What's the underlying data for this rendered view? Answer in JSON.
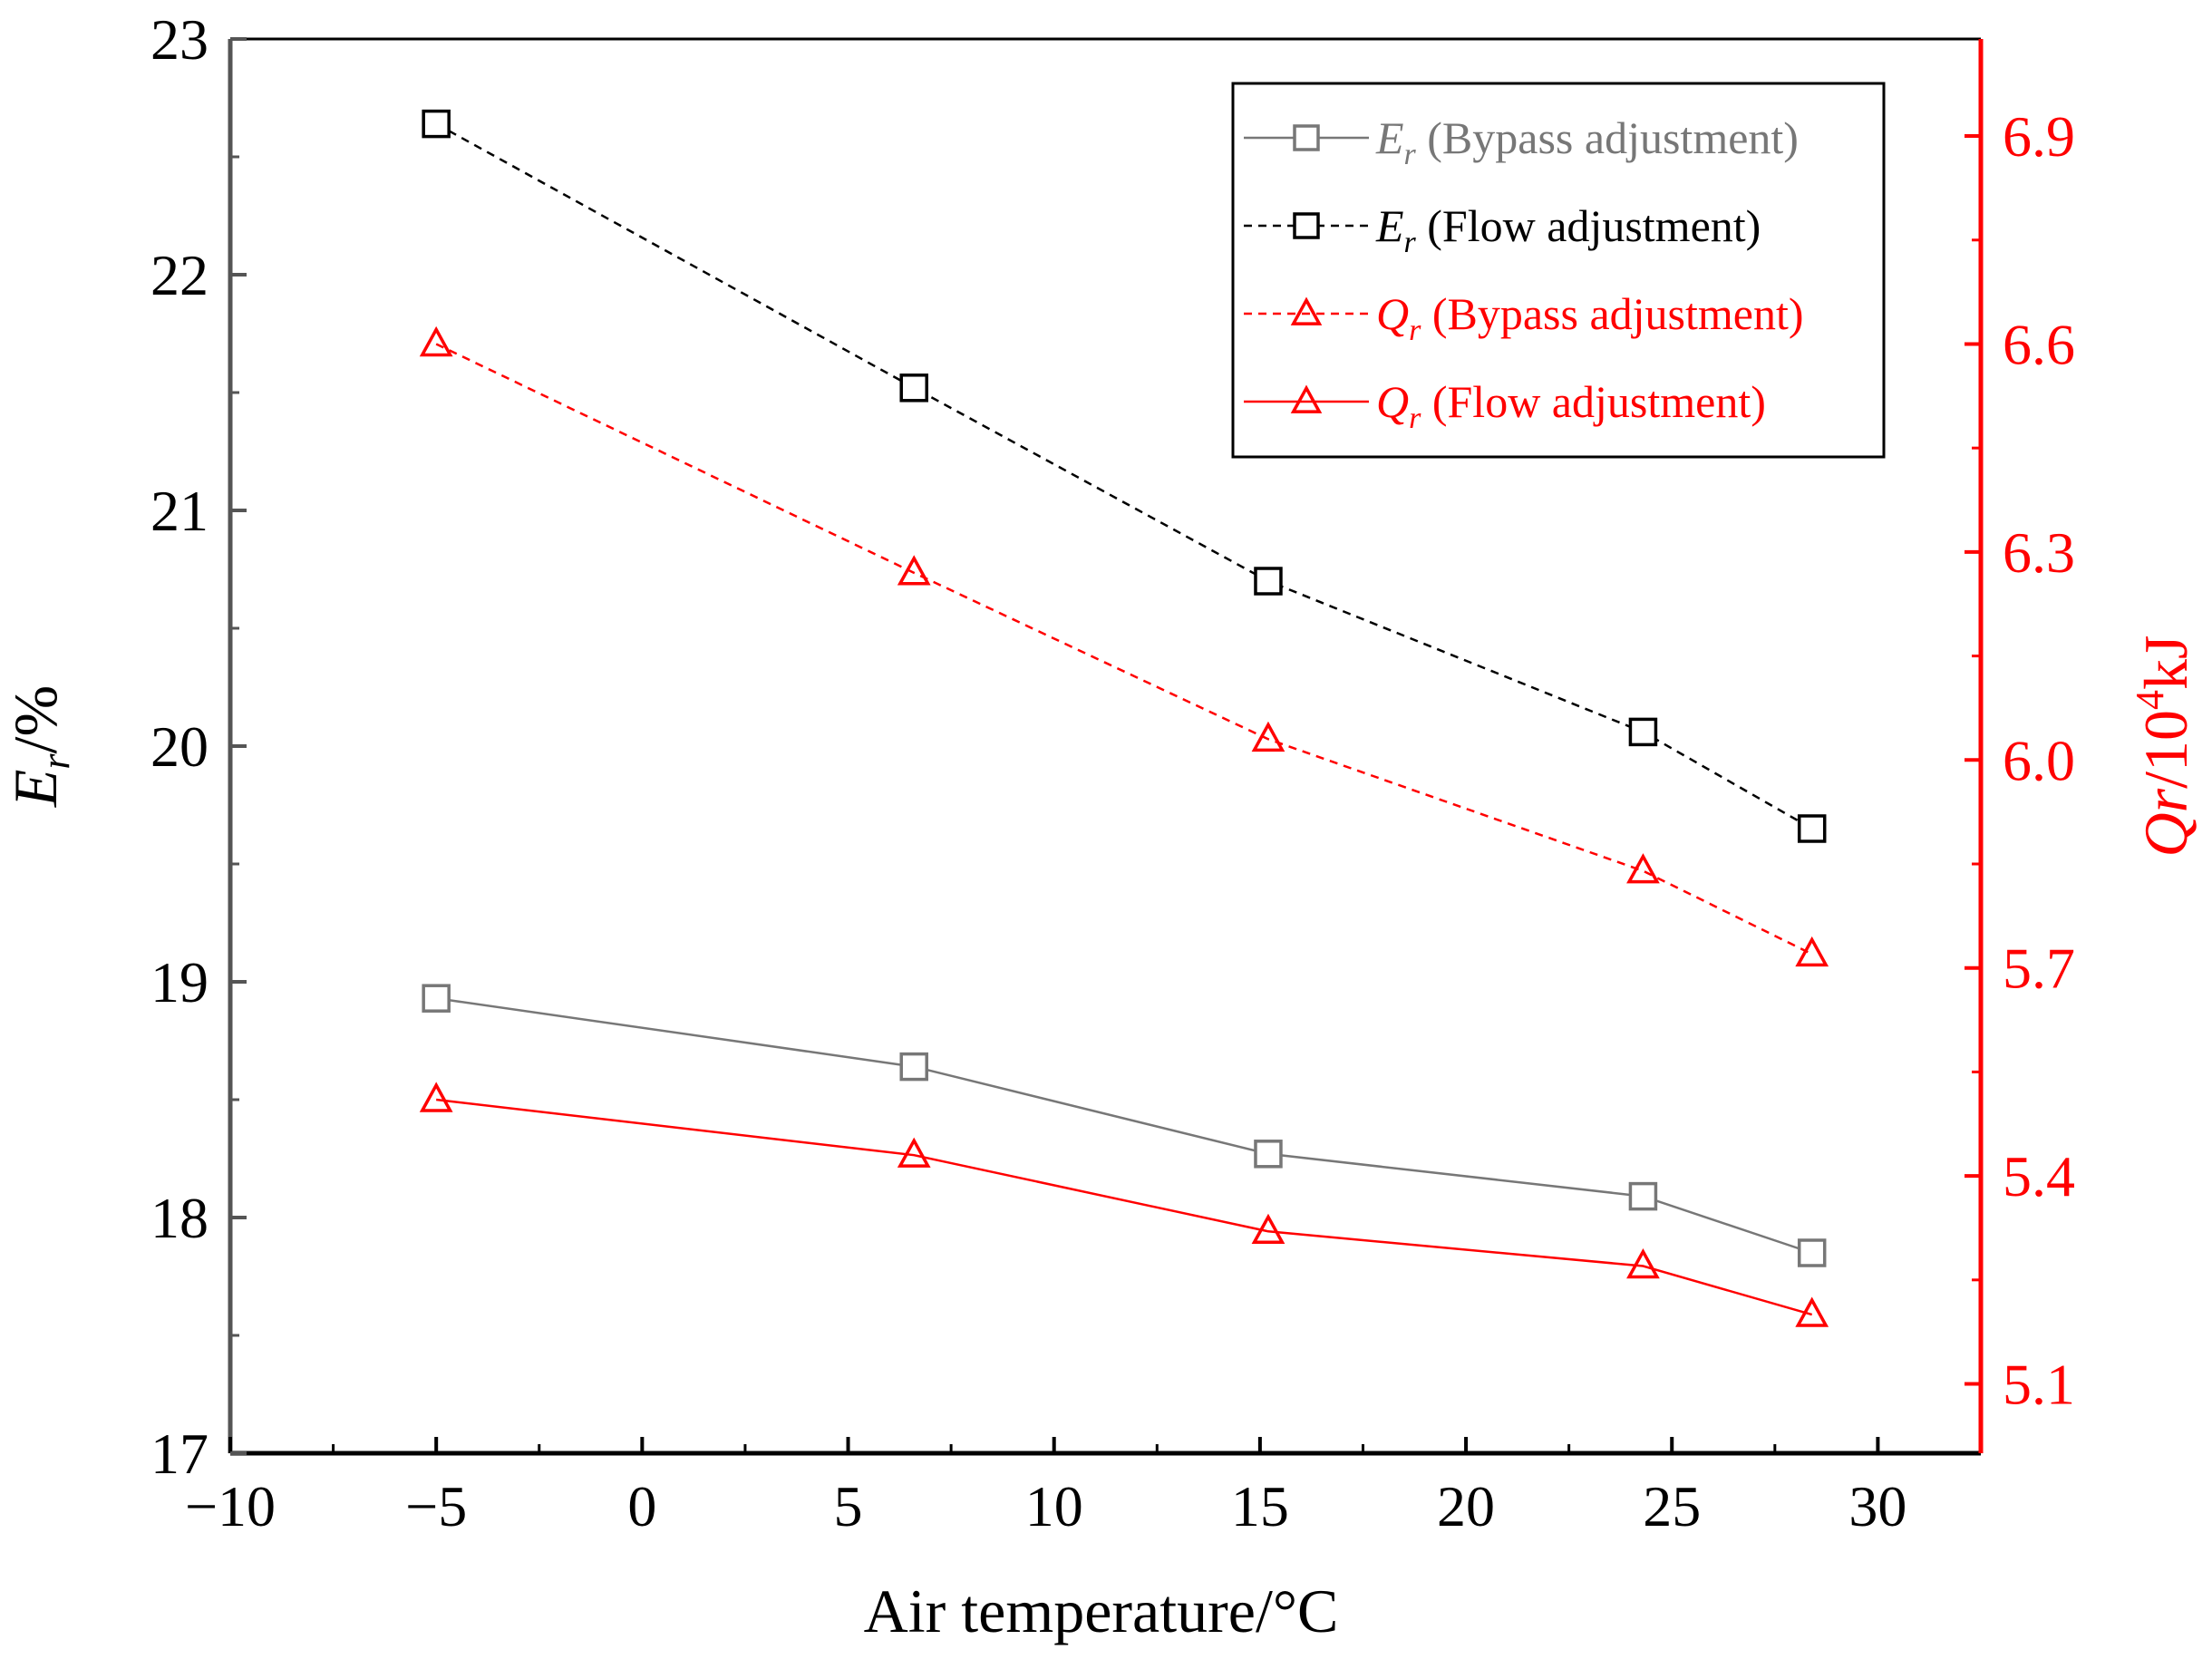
{
  "chart_data": {
    "type": "line",
    "xlabel": "Air temperature/°C",
    "ylabel": {
      "symbol": "E",
      "sub": "r",
      "unit": "/%"
    },
    "y2label": {
      "symbol": "Qr",
      "unit_prefix": "/10",
      "unit_exp": "4",
      "unit_suffix": "kJ"
    },
    "xlim": [
      -10,
      32.5
    ],
    "ylim": [
      17,
      23
    ],
    "y2lim": [
      5.0,
      7.04
    ],
    "x_ticks": [
      -10,
      -5,
      0,
      5,
      10,
      15,
      20,
      25,
      30
    ],
    "x_tick_labels": [
      "−10",
      "−5",
      "0",
      "5",
      "10",
      "15",
      "20",
      "25",
      "30"
    ],
    "y_ticks": [
      17,
      18,
      19,
      20,
      21,
      22,
      23
    ],
    "y_tick_labels": [
      "17",
      "18",
      "19",
      "20",
      "21",
      "22",
      "23"
    ],
    "y2_ticks": [
      5.1,
      5.4,
      5.7,
      6.0,
      6.3,
      6.6,
      6.9
    ],
    "y2_tick_labels": [
      "5.1",
      "5.4",
      "5.7",
      "6.0",
      "6.3",
      "6.6",
      "6.9"
    ],
    "legend_position": "top-right",
    "colors": {
      "axis_left": "#555555",
      "axis_right": "#ff0000",
      "gray": "#777777",
      "black": "#000000",
      "red": "#ff0000"
    },
    "series": [
      {
        "id": "er-bypass",
        "symbol": "E",
        "sub": "r",
        "label": " (Bypass adjustment)",
        "axis": "left",
        "marker": "square",
        "dash": "solid",
        "color": "#777777",
        "x": [
          -5.0,
          6.6,
          15.2,
          24.3,
          28.4
        ],
        "y": [
          18.93,
          18.64,
          18.27,
          18.09,
          17.85
        ]
      },
      {
        "id": "er-flow",
        "symbol": "E",
        "sub": "r",
        "label": " (Flow adjustment)",
        "axis": "left",
        "marker": "square",
        "dash": "dashed",
        "color": "#000000",
        "x": [
          -5.0,
          6.6,
          15.2,
          24.3,
          28.4
        ],
        "y": [
          22.64,
          21.52,
          20.7,
          20.06,
          19.65
        ]
      },
      {
        "id": "qr-bypass",
        "symbol": "Q",
        "sub": "r",
        "label": " (Bypass adjustment)",
        "axis": "right",
        "marker": "triangle",
        "dash": "dashed",
        "color": "#ff0000",
        "x": [
          -5.0,
          6.6,
          15.2,
          24.3,
          28.4
        ],
        "y": [
          6.6,
          6.27,
          6.03,
          5.84,
          5.72
        ]
      },
      {
        "id": "qr-flow",
        "symbol": "Q",
        "sub": "r",
        "label": " (Flow adjustment)",
        "axis": "right",
        "marker": "triangle",
        "dash": "solid",
        "color": "#ff0000",
        "x": [
          -5.0,
          6.6,
          15.2,
          24.3,
          28.4
        ],
        "y": [
          5.51,
          5.43,
          5.32,
          5.27,
          5.2
        ]
      }
    ]
  }
}
